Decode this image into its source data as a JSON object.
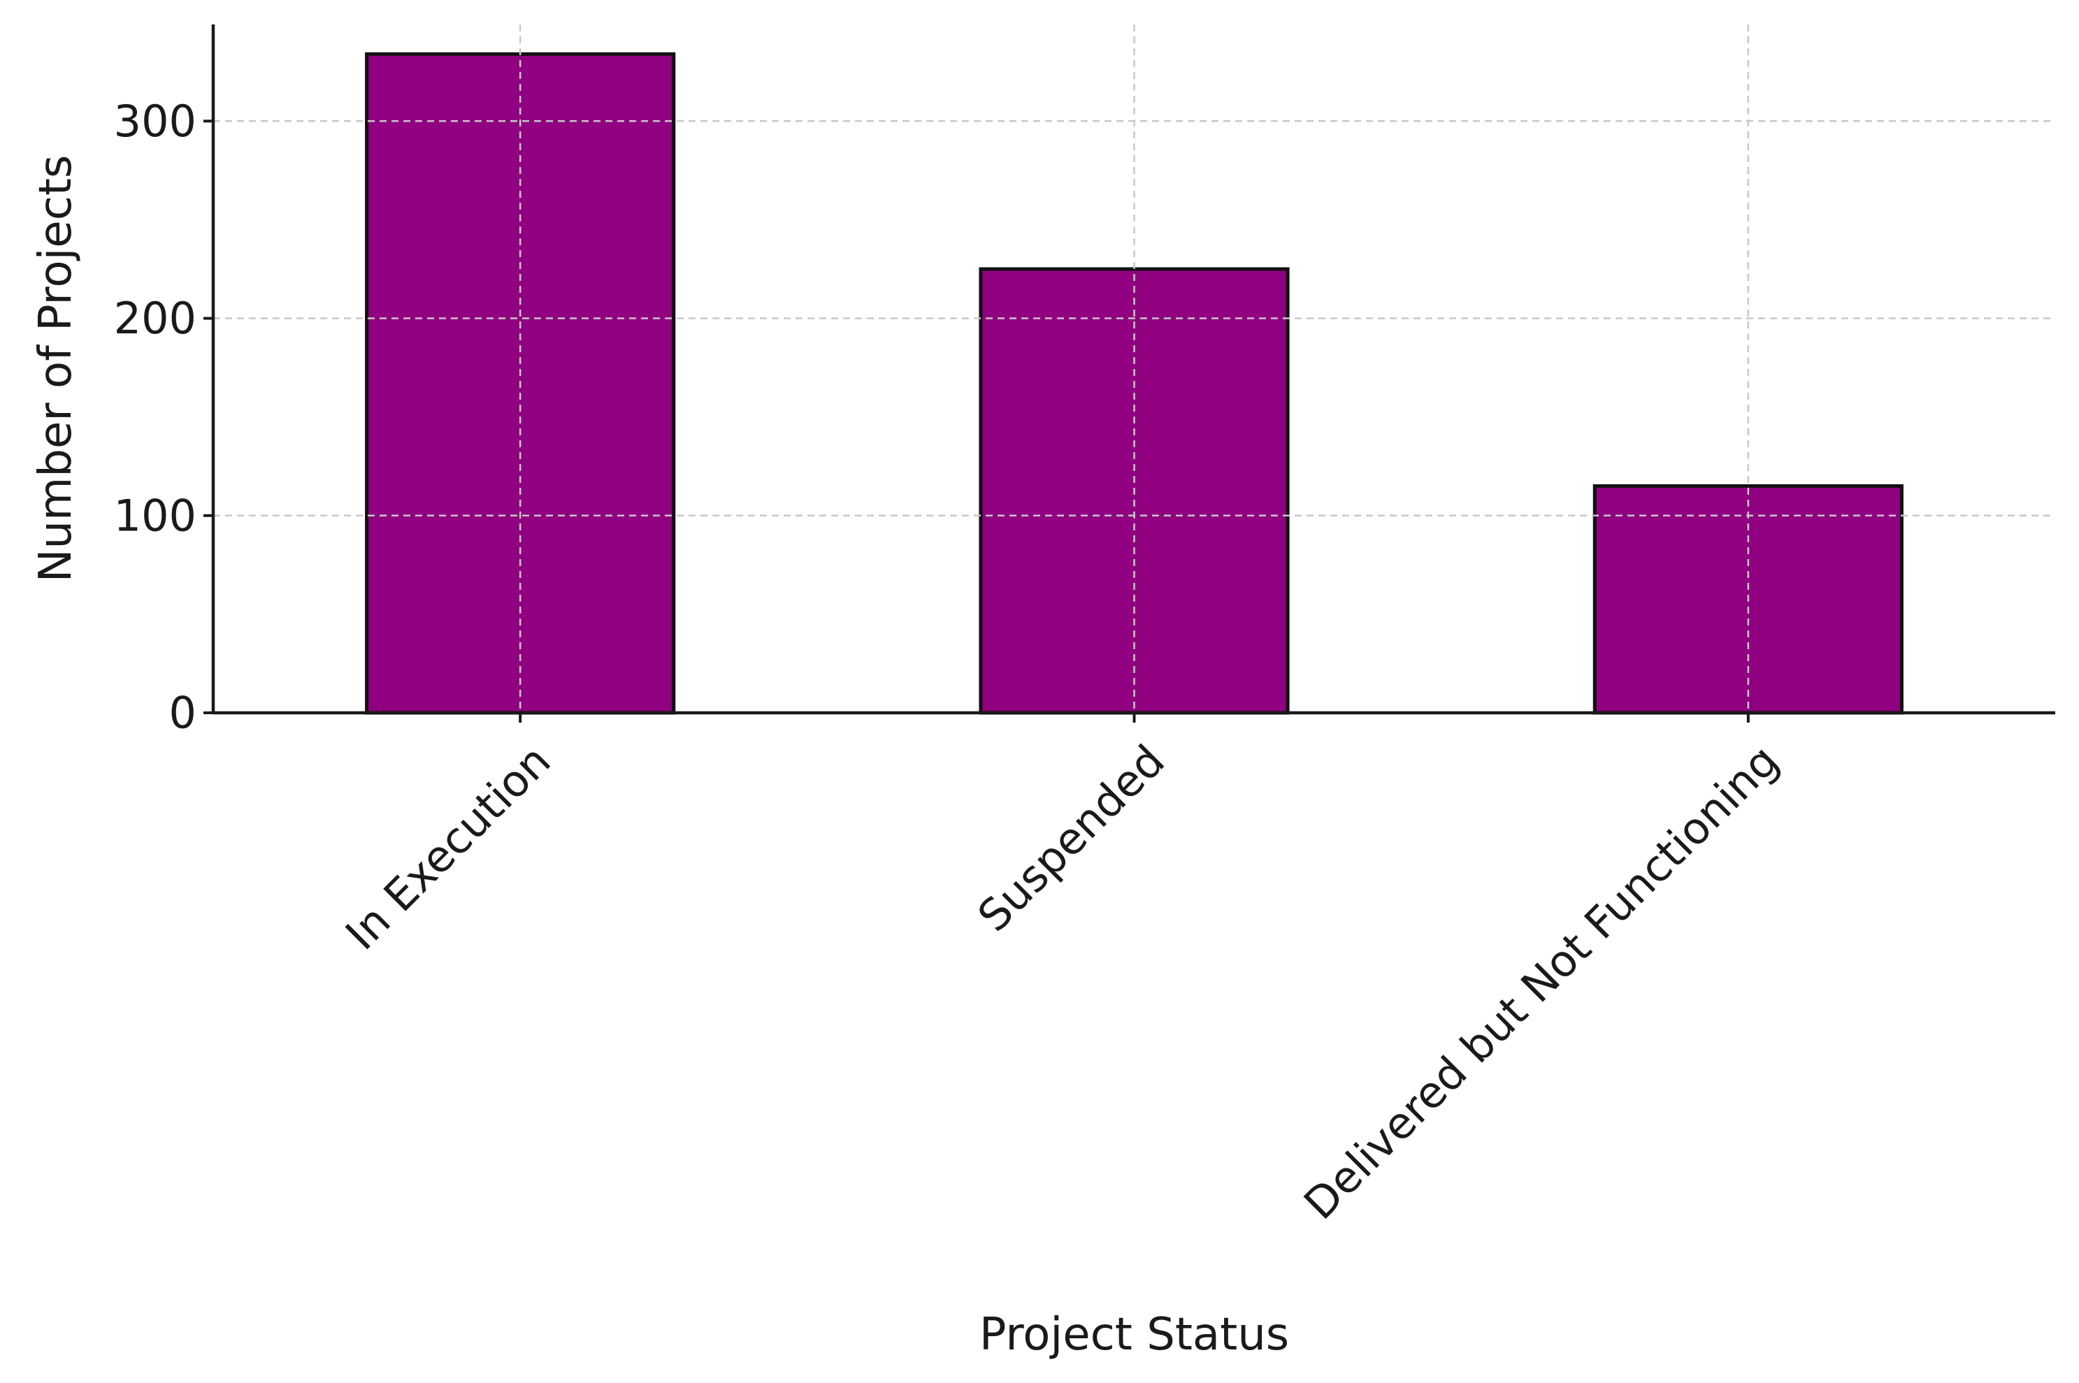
{
  "chart_data": {
    "type": "bar",
    "title": "",
    "xlabel": "Project Status",
    "ylabel": "Number of Projects",
    "categories": [
      "In Execution",
      "Suspended",
      "Delivered but Not Functioning"
    ],
    "values": [
      334,
      225,
      115
    ],
    "ylim": [
      0,
      349
    ],
    "yticks": [
      0,
      100,
      200,
      300
    ],
    "grid": true,
    "legend": "none",
    "colors": {
      "bar": "#900080",
      "bar_edge": "#111111",
      "grid": "#c8c8c8",
      "axis": "#1a1a1a"
    }
  }
}
